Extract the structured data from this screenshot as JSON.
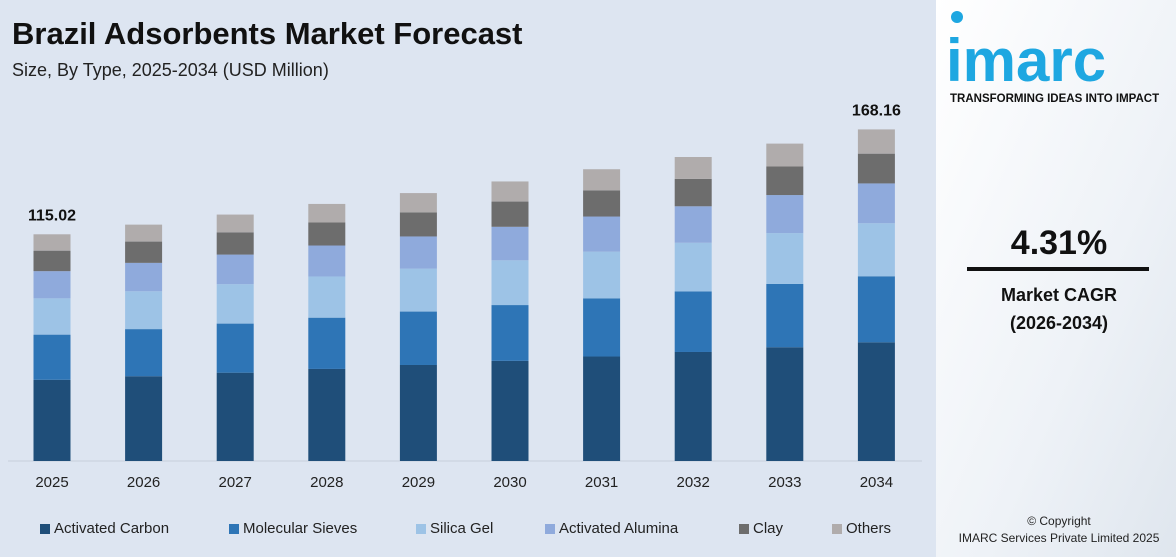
{
  "chart_data": {
    "type": "stacked-bar",
    "title": "Brazil Adsorbents Market Forecast",
    "subtitle": "Size, By Type, 2025-2034 (USD Million)",
    "categories": [
      "2025",
      "2026",
      "2027",
      "2028",
      "2029",
      "2030",
      "2031",
      "2032",
      "2033",
      "2034"
    ],
    "series": [
      {
        "name": "Activated Carbon",
        "color": "#1f4e79",
        "values": [
          41.2,
          43.0,
          44.8,
          46.7,
          48.7,
          50.8,
          53.0,
          55.3,
          57.7,
          60.2
        ]
      },
      {
        "name": "Molecular Sieves",
        "color": "#2e75b6",
        "values": [
          22.9,
          23.9,
          24.9,
          26.0,
          27.1,
          28.3,
          29.5,
          30.7,
          32.1,
          33.5
        ]
      },
      {
        "name": "Silica Gel",
        "color": "#9dc3e6",
        "values": [
          18.4,
          19.2,
          20.0,
          20.9,
          21.8,
          22.7,
          23.7,
          24.7,
          25.8,
          26.9
        ]
      },
      {
        "name": "Activated Alumina",
        "color": "#8faadc",
        "values": [
          13.8,
          14.4,
          15.0,
          15.7,
          16.3,
          17.0,
          17.8,
          18.5,
          19.3,
          20.2
        ]
      },
      {
        "name": "Clay",
        "color": "#6d6d6d",
        "values": [
          10.4,
          10.8,
          11.3,
          11.7,
          12.2,
          12.8,
          13.3,
          13.9,
          14.5,
          15.1
        ]
      },
      {
        "name": "Others",
        "color": "#b0acac",
        "values": [
          8.3,
          8.6,
          9.0,
          9.4,
          9.8,
          10.2,
          10.7,
          11.1,
          11.6,
          12.3
        ]
      }
    ],
    "annotations": [
      {
        "x": "2025",
        "value": 115.02
      },
      {
        "x": "2034",
        "value": 168.16
      }
    ],
    "ylim": [
      0,
      175
    ]
  },
  "sidebar": {
    "logo": "imarc",
    "tagline": "TRANSFORMING IDEAS INTO IMPACT",
    "cagr": "4.31%",
    "cagr_label": "Market CAGR",
    "cagr_period": "(2026-2034)",
    "copyright": "© Copyright",
    "company": "IMARC Services Private Limited 2025"
  }
}
